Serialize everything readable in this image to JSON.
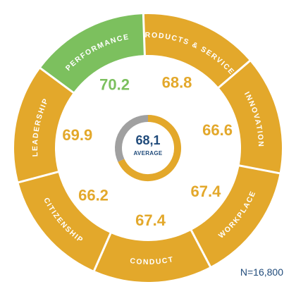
{
  "chart_data": {
    "type": "pie",
    "categories": [
      "Products & Services",
      "Innovation",
      "Workplace",
      "Conduct",
      "Citizenship",
      "Leadership",
      "Performance"
    ],
    "segment_labels": [
      "PRODUCTS & SERVICES",
      "INNOVATION",
      "WORKPLACE",
      "CONDUCT",
      "CITIZENSHIP",
      "LEADERSHIP",
      "PERFORMANCE"
    ],
    "values": [
      68.8,
      66.6,
      67.4,
      67.4,
      66.2,
      69.9,
      70.2
    ],
    "value_labels": [
      "68.8",
      "66.6",
      "67.4",
      "67.4",
      "66.2",
      "69.9",
      "70.2"
    ],
    "highlighted": "Performance",
    "average": {
      "value": 68.1,
      "value_label": "68,1",
      "label": "AVERAGE",
      "scale_max": 100
    },
    "sample_size": "N=16,800"
  },
  "colors": {
    "segment": "#e3a82b",
    "highlight": "#7cc05e",
    "score": "#e3a82b",
    "score_highlight": "#7cc05e",
    "average_track": "#a0a0a0",
    "text_dark": "#1f4a7a"
  }
}
